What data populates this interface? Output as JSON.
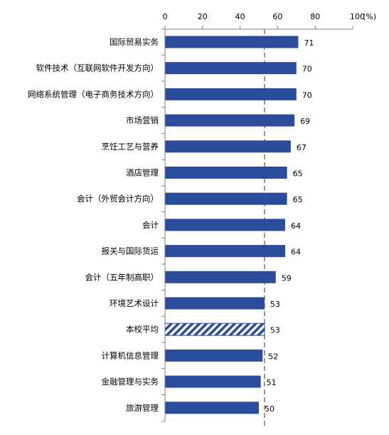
{
  "chart_data": {
    "type": "bar",
    "orientation": "horizontal",
    "title": "",
    "xlabel": "",
    "ylabel": "",
    "axis_unit_label": "(%)",
    "xlim": [
      0,
      100
    ],
    "x_ticks": [
      0,
      20,
      40,
      60,
      80,
      100
    ],
    "x_axis_position": "top",
    "grid": false,
    "reference_line": {
      "value": 53,
      "style": "dashed",
      "meaning": "本校平均"
    },
    "highlight_category": "本校平均",
    "categories": [
      "国际贸易实务",
      "软件技术（互联网软件开发方向）",
      "网络系统管理（电子商务技术方向）",
      "市场营销",
      "烹饪工艺与营养",
      "酒店管理",
      "会计（外贸会计方向）",
      "会计",
      "报关与国际货运",
      "会计（五年制高职）",
      "环境艺术设计",
      "本校平均",
      "计算机信息管理",
      "金融管理与实务",
      "旅游管理"
    ],
    "values": [
      71,
      70,
      70,
      69,
      67,
      65,
      65,
      64,
      64,
      59,
      53,
      53,
      52,
      51,
      50
    ]
  },
  "colors": {
    "bar": "#2B4C9B",
    "highlight_hatch": "#2B4C9B",
    "axis": "#808080",
    "reference_line": "#808080",
    "text": "#000000"
  }
}
